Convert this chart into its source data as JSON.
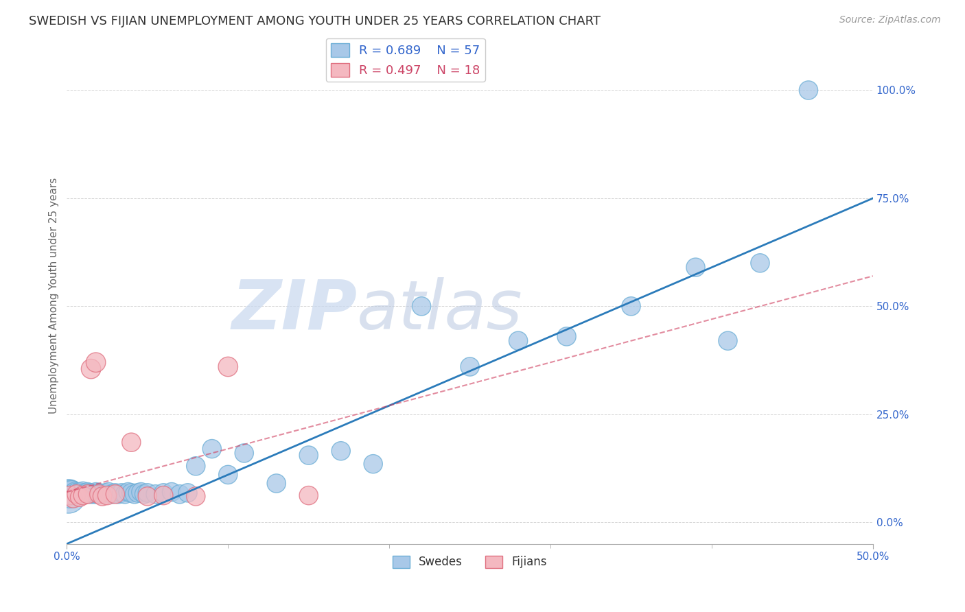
{
  "title": "SWEDISH VS FIJIAN UNEMPLOYMENT AMONG YOUTH UNDER 25 YEARS CORRELATION CHART",
  "source": "Source: ZipAtlas.com",
  "ylabel": "Unemployment Among Youth under 25 years",
  "xlim": [
    0.0,
    0.5
  ],
  "ylim": [
    -0.05,
    1.1
  ],
  "xticks_major": [
    0.0,
    0.5
  ],
  "xticks_minor": [
    0.1,
    0.2,
    0.3,
    0.4
  ],
  "xticklabels_major": [
    "0.0%",
    "50.0%"
  ],
  "yticks": [
    0.0,
    0.25,
    0.5,
    0.75,
    1.0
  ],
  "yticklabels": [
    "0.0%",
    "25.0%",
    "50.0%",
    "75.0%",
    "100.0%"
  ],
  "swedish_x": [
    0.001,
    0.002,
    0.003,
    0.004,
    0.005,
    0.006,
    0.007,
    0.008,
    0.009,
    0.01,
    0.011,
    0.012,
    0.013,
    0.014,
    0.015,
    0.016,
    0.017,
    0.018,
    0.019,
    0.02,
    0.022,
    0.024,
    0.026,
    0.028,
    0.03,
    0.032,
    0.034,
    0.036,
    0.038,
    0.04,
    0.042,
    0.044,
    0.046,
    0.048,
    0.05,
    0.055,
    0.06,
    0.065,
    0.07,
    0.075,
    0.08,
    0.09,
    0.1,
    0.11,
    0.13,
    0.15,
    0.17,
    0.19,
    0.22,
    0.25,
    0.28,
    0.31,
    0.35,
    0.39,
    0.41,
    0.43,
    0.46
  ],
  "swedish_y": [
    0.06,
    0.065,
    0.07,
    0.065,
    0.07,
    0.068,
    0.065,
    0.07,
    0.068,
    0.072,
    0.068,
    0.065,
    0.07,
    0.068,
    0.065,
    0.068,
    0.065,
    0.07,
    0.065,
    0.068,
    0.065,
    0.068,
    0.07,
    0.065,
    0.068,
    0.065,
    0.068,
    0.065,
    0.07,
    0.068,
    0.065,
    0.068,
    0.07,
    0.065,
    0.068,
    0.065,
    0.068,
    0.07,
    0.065,
    0.068,
    0.13,
    0.17,
    0.11,
    0.16,
    0.09,
    0.155,
    0.165,
    0.135,
    0.5,
    0.36,
    0.42,
    0.43,
    0.5,
    0.59,
    0.42,
    0.6,
    1.0
  ],
  "swedish_sizes_raw": [
    180,
    120,
    80,
    70,
    60,
    60,
    55,
    55,
    55,
    55,
    55,
    55,
    55,
    55,
    55,
    55,
    55,
    55,
    55,
    55,
    55,
    55,
    55,
    55,
    55,
    55,
    55,
    55,
    55,
    55,
    55,
    55,
    55,
    55,
    55,
    55,
    55,
    55,
    55,
    55,
    55,
    55,
    55,
    55,
    55,
    55,
    55,
    55,
    55,
    55,
    55,
    55,
    55,
    55,
    55,
    55,
    55
  ],
  "fijian_x": [
    0.002,
    0.004,
    0.006,
    0.008,
    0.01,
    0.013,
    0.015,
    0.018,
    0.02,
    0.022,
    0.025,
    0.03,
    0.04,
    0.05,
    0.06,
    0.08,
    0.1,
    0.15
  ],
  "fijian_y": [
    0.062,
    0.055,
    0.065,
    0.058,
    0.062,
    0.065,
    0.355,
    0.37,
    0.065,
    0.06,
    0.062,
    0.065,
    0.185,
    0.06,
    0.062,
    0.06,
    0.36,
    0.062
  ],
  "fijian_sizes_raw": [
    55,
    55,
    55,
    55,
    55,
    55,
    60,
    60,
    55,
    55,
    55,
    55,
    55,
    55,
    55,
    55,
    60,
    55
  ],
  "swedish_color": "#a8c8e8",
  "swedish_edge_color": "#6baed6",
  "fijian_color": "#f4b8c0",
  "fijian_edge_color": "#e07080",
  "swedish_line_color": "#2b7bba",
  "fijian_line_color": "#d04060",
  "R_swedish": 0.689,
  "N_swedish": 57,
  "R_fijian": 0.497,
  "N_fijian": 18,
  "legend_labels": [
    "Swedes",
    "Fijians"
  ],
  "watermark_zip": "ZIP",
  "watermark_atlas": "atlas",
  "title_color": "#333333",
  "axis_label_color": "#666666",
  "tick_color": "#3366cc",
  "grid_color": "#cccccc",
  "swedish_line_intercept": -0.05,
  "swedish_line_slope": 1.6,
  "fijian_line_intercept": 0.07,
  "fijian_line_slope": 1.0
}
